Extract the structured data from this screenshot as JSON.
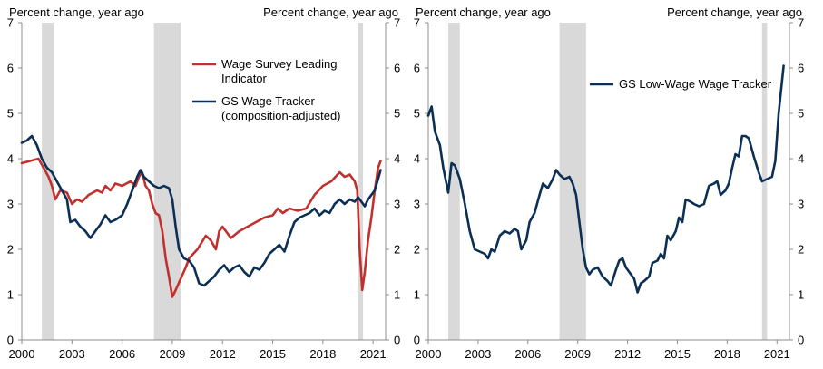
{
  "chart_data": [
    {
      "type": "line",
      "panel": "left",
      "ylabel_left": "Percent change, year ago",
      "ylabel_right": "Percent change, year ago",
      "xlim": [
        2000,
        2021.75
      ],
      "ylim": [
        0,
        7
      ],
      "yticks": [
        0,
        1,
        2,
        3,
        4,
        5,
        6,
        7
      ],
      "xtick_labels": [
        "2000",
        "2003",
        "2006",
        "2009",
        "2012",
        "2015",
        "2018",
        "2021"
      ],
      "xtick_values": [
        2000,
        2003,
        2006,
        2009,
        2012,
        2015,
        2018,
        2021
      ],
      "recessions": [
        [
          2001.2,
          2001.9
        ],
        [
          2007.9,
          2009.5
        ],
        [
          2020.1,
          2020.4
        ]
      ],
      "legend_location": "upper-center",
      "series": [
        {
          "name": "Wage Survey Leading Indicator",
          "legend_lines": [
            "Wage Survey Leading",
            "Indicator"
          ],
          "color": "#C0312E",
          "points": [
            [
              2000,
              3.9
            ],
            [
              2000.5,
              3.95
            ],
            [
              2001,
              4.0
            ],
            [
              2001.3,
              3.8
            ],
            [
              2001.6,
              3.6
            ],
            [
              2001.8,
              3.4
            ],
            [
              2002,
              3.1
            ],
            [
              2002.3,
              3.3
            ],
            [
              2002.7,
              3.25
            ],
            [
              2003,
              3.0
            ],
            [
              2003.3,
              3.1
            ],
            [
              2003.6,
              3.05
            ],
            [
              2004,
              3.2
            ],
            [
              2004.5,
              3.3
            ],
            [
              2004.8,
              3.25
            ],
            [
              2005,
              3.4
            ],
            [
              2005.3,
              3.3
            ],
            [
              2005.6,
              3.45
            ],
            [
              2006,
              3.4
            ],
            [
              2006.5,
              3.5
            ],
            [
              2006.8,
              3.4
            ],
            [
              2007,
              3.6
            ],
            [
              2007.2,
              3.7
            ],
            [
              2007.4,
              3.4
            ],
            [
              2007.6,
              3.3
            ],
            [
              2007.8,
              3.0
            ],
            [
              2008,
              2.8
            ],
            [
              2008.2,
              2.75
            ],
            [
              2008.4,
              2.4
            ],
            [
              2008.6,
              1.8
            ],
            [
              2008.8,
              1.4
            ],
            [
              2009,
              0.95
            ],
            [
              2009.2,
              1.1
            ],
            [
              2009.5,
              1.35
            ],
            [
              2009.8,
              1.6
            ],
            [
              2010,
              1.8
            ],
            [
              2010.5,
              2.0
            ],
            [
              2011,
              2.3
            ],
            [
              2011.3,
              2.2
            ],
            [
              2011.6,
              2.0
            ],
            [
              2011.8,
              2.4
            ],
            [
              2012,
              2.5
            ],
            [
              2012.5,
              2.25
            ],
            [
              2013,
              2.4
            ],
            [
              2013.5,
              2.5
            ],
            [
              2014,
              2.6
            ],
            [
              2014.5,
              2.7
            ],
            [
              2015,
              2.75
            ],
            [
              2015.3,
              2.9
            ],
            [
              2015.6,
              2.8
            ],
            [
              2016,
              2.9
            ],
            [
              2016.5,
              2.85
            ],
            [
              2017,
              2.9
            ],
            [
              2017.5,
              3.2
            ],
            [
              2018,
              3.4
            ],
            [
              2018.5,
              3.5
            ],
            [
              2019,
              3.7
            ],
            [
              2019.3,
              3.6
            ],
            [
              2019.6,
              3.65
            ],
            [
              2019.9,
              3.5
            ],
            [
              2020.05,
              3.3
            ],
            [
              2020.2,
              2.0
            ],
            [
              2020.35,
              1.1
            ],
            [
              2020.5,
              1.5
            ],
            [
              2020.7,
              2.2
            ],
            [
              2020.9,
              2.7
            ],
            [
              2021.1,
              3.3
            ],
            [
              2021.3,
              3.8
            ],
            [
              2021.45,
              3.95
            ]
          ]
        },
        {
          "name": "GS Wage Tracker (composition-adjusted)",
          "legend_lines": [
            "GS Wage Tracker",
            "(composition-adjusted)"
          ],
          "color": "#0B2F55",
          "points": [
            [
              2000,
              4.35
            ],
            [
              2000.3,
              4.4
            ],
            [
              2000.6,
              4.5
            ],
            [
              2000.9,
              4.3
            ],
            [
              2001.2,
              4.0
            ],
            [
              2001.5,
              3.8
            ],
            [
              2001.8,
              3.7
            ],
            [
              2002.1,
              3.5
            ],
            [
              2002.4,
              3.3
            ],
            [
              2002.7,
              3.1
            ],
            [
              2002.9,
              2.6
            ],
            [
              2003.2,
              2.65
            ],
            [
              2003.5,
              2.5
            ],
            [
              2003.8,
              2.4
            ],
            [
              2004.1,
              2.25
            ],
            [
              2004.4,
              2.4
            ],
            [
              2004.7,
              2.55
            ],
            [
              2005,
              2.75
            ],
            [
              2005.3,
              2.6
            ],
            [
              2005.6,
              2.65
            ],
            [
              2006,
              2.75
            ],
            [
              2006.3,
              3.0
            ],
            [
              2006.6,
              3.3
            ],
            [
              2006.9,
              3.6
            ],
            [
              2007.1,
              3.75
            ],
            [
              2007.3,
              3.6
            ],
            [
              2007.6,
              3.5
            ],
            [
              2007.9,
              3.4
            ],
            [
              2008.2,
              3.35
            ],
            [
              2008.5,
              3.4
            ],
            [
              2008.8,
              3.35
            ],
            [
              2009,
              3.1
            ],
            [
              2009.2,
              2.5
            ],
            [
              2009.4,
              2.0
            ],
            [
              2009.7,
              1.8
            ],
            [
              2010,
              1.75
            ],
            [
              2010.3,
              1.6
            ],
            [
              2010.6,
              1.25
            ],
            [
              2010.9,
              1.2
            ],
            [
              2011.2,
              1.3
            ],
            [
              2011.5,
              1.4
            ],
            [
              2011.8,
              1.55
            ],
            [
              2012.1,
              1.65
            ],
            [
              2012.4,
              1.5
            ],
            [
              2012.7,
              1.6
            ],
            [
              2013,
              1.65
            ],
            [
              2013.3,
              1.5
            ],
            [
              2013.6,
              1.4
            ],
            [
              2013.9,
              1.6
            ],
            [
              2014.2,
              1.55
            ],
            [
              2014.5,
              1.7
            ],
            [
              2014.8,
              1.9
            ],
            [
              2015.1,
              2.0
            ],
            [
              2015.4,
              2.1
            ],
            [
              2015.7,
              1.95
            ],
            [
              2016,
              2.3
            ],
            [
              2016.3,
              2.6
            ],
            [
              2016.6,
              2.7
            ],
            [
              2016.9,
              2.75
            ],
            [
              2017.2,
              2.8
            ],
            [
              2017.5,
              2.9
            ],
            [
              2017.8,
              2.75
            ],
            [
              2018.1,
              2.85
            ],
            [
              2018.4,
              2.8
            ],
            [
              2018.7,
              3.0
            ],
            [
              2019,
              3.1
            ],
            [
              2019.3,
              3.0
            ],
            [
              2019.6,
              3.1
            ],
            [
              2019.9,
              3.05
            ],
            [
              2020.1,
              3.15
            ],
            [
              2020.3,
              3.05
            ],
            [
              2020.5,
              2.95
            ],
            [
              2020.7,
              3.1
            ],
            [
              2020.9,
              3.2
            ],
            [
              2021.1,
              3.3
            ],
            [
              2021.3,
              3.55
            ],
            [
              2021.45,
              3.75
            ]
          ]
        }
      ]
    },
    {
      "type": "line",
      "panel": "right",
      "ylabel_left": "Percent change, year ago",
      "ylabel_right": "Percent change, year ago",
      "xlim": [
        2000,
        2021.75
      ],
      "ylim": [
        0,
        7
      ],
      "yticks": [
        0,
        1,
        2,
        3,
        4,
        5,
        6,
        7
      ],
      "xtick_labels": [
        "2000",
        "2003",
        "2006",
        "2009",
        "2012",
        "2015",
        "2018",
        "2021"
      ],
      "xtick_values": [
        2000,
        2003,
        2006,
        2009,
        2012,
        2015,
        2018,
        2021
      ],
      "recessions": [
        [
          2001.2,
          2001.9
        ],
        [
          2007.9,
          2009.5
        ],
        [
          2020.1,
          2020.4
        ]
      ],
      "legend_location": "upper-right",
      "series": [
        {
          "name": "GS Low-Wage Wage Tracker",
          "legend_lines": [
            "GS Low-Wage Wage Tracker"
          ],
          "color": "#0B2F55",
          "points": [
            [
              2000,
              4.95
            ],
            [
              2000.2,
              5.15
            ],
            [
              2000.4,
              4.6
            ],
            [
              2000.7,
              4.3
            ],
            [
              2000.9,
              3.8
            ],
            [
              2001.2,
              3.25
            ],
            [
              2001.4,
              3.9
            ],
            [
              2001.6,
              3.85
            ],
            [
              2001.9,
              3.55
            ],
            [
              2002.2,
              3.0
            ],
            [
              2002.5,
              2.4
            ],
            [
              2002.8,
              2.0
            ],
            [
              2003.1,
              1.95
            ],
            [
              2003.4,
              1.9
            ],
            [
              2003.6,
              1.8
            ],
            [
              2003.8,
              2.0
            ],
            [
              2004,
              1.95
            ],
            [
              2004.3,
              2.3
            ],
            [
              2004.6,
              2.4
            ],
            [
              2004.9,
              2.35
            ],
            [
              2005.2,
              2.45
            ],
            [
              2005.4,
              2.4
            ],
            [
              2005.6,
              2.0
            ],
            [
              2005.9,
              2.2
            ],
            [
              2006.1,
              2.6
            ],
            [
              2006.4,
              2.8
            ],
            [
              2006.7,
              3.2
            ],
            [
              2006.9,
              3.45
            ],
            [
              2007.2,
              3.35
            ],
            [
              2007.5,
              3.55
            ],
            [
              2007.7,
              3.75
            ],
            [
              2007.9,
              3.65
            ],
            [
              2008.2,
              3.55
            ],
            [
              2008.5,
              3.6
            ],
            [
              2008.7,
              3.45
            ],
            [
              2008.9,
              3.2
            ],
            [
              2009.1,
              2.6
            ],
            [
              2009.3,
              2.0
            ],
            [
              2009.5,
              1.6
            ],
            [
              2009.7,
              1.45
            ],
            [
              2009.9,
              1.55
            ],
            [
              2010.2,
              1.6
            ],
            [
              2010.5,
              1.4
            ],
            [
              2010.8,
              1.3
            ],
            [
              2011,
              1.2
            ],
            [
              2011.3,
              1.55
            ],
            [
              2011.5,
              1.75
            ],
            [
              2011.7,
              1.8
            ],
            [
              2011.9,
              1.6
            ],
            [
              2012.2,
              1.45
            ],
            [
              2012.4,
              1.35
            ],
            [
              2012.6,
              1.05
            ],
            [
              2012.8,
              1.25
            ],
            [
              2013,
              1.3
            ],
            [
              2013.3,
              1.4
            ],
            [
              2013.5,
              1.7
            ],
            [
              2013.8,
              1.75
            ],
            [
              2014,
              1.9
            ],
            [
              2014.2,
              1.8
            ],
            [
              2014.4,
              2.3
            ],
            [
              2014.6,
              2.2
            ],
            [
              2014.9,
              2.4
            ],
            [
              2015.1,
              2.7
            ],
            [
              2015.3,
              2.6
            ],
            [
              2015.5,
              3.1
            ],
            [
              2015.8,
              3.05
            ],
            [
              2016,
              3.0
            ],
            [
              2016.3,
              2.95
            ],
            [
              2016.6,
              3.0
            ],
            [
              2016.9,
              3.4
            ],
            [
              2017.2,
              3.45
            ],
            [
              2017.4,
              3.5
            ],
            [
              2017.6,
              3.2
            ],
            [
              2017.9,
              3.3
            ],
            [
              2018.1,
              3.45
            ],
            [
              2018.3,
              3.8
            ],
            [
              2018.5,
              4.1
            ],
            [
              2018.7,
              4.05
            ],
            [
              2018.9,
              4.5
            ],
            [
              2019.1,
              4.5
            ],
            [
              2019.3,
              4.45
            ],
            [
              2019.6,
              4.05
            ],
            [
              2019.9,
              3.7
            ],
            [
              2020.1,
              3.5
            ],
            [
              2020.4,
              3.55
            ],
            [
              2020.7,
              3.6
            ],
            [
              2020.9,
              3.95
            ],
            [
              2021.1,
              5.0
            ],
            [
              2021.4,
              6.05
            ]
          ]
        }
      ]
    }
  ]
}
